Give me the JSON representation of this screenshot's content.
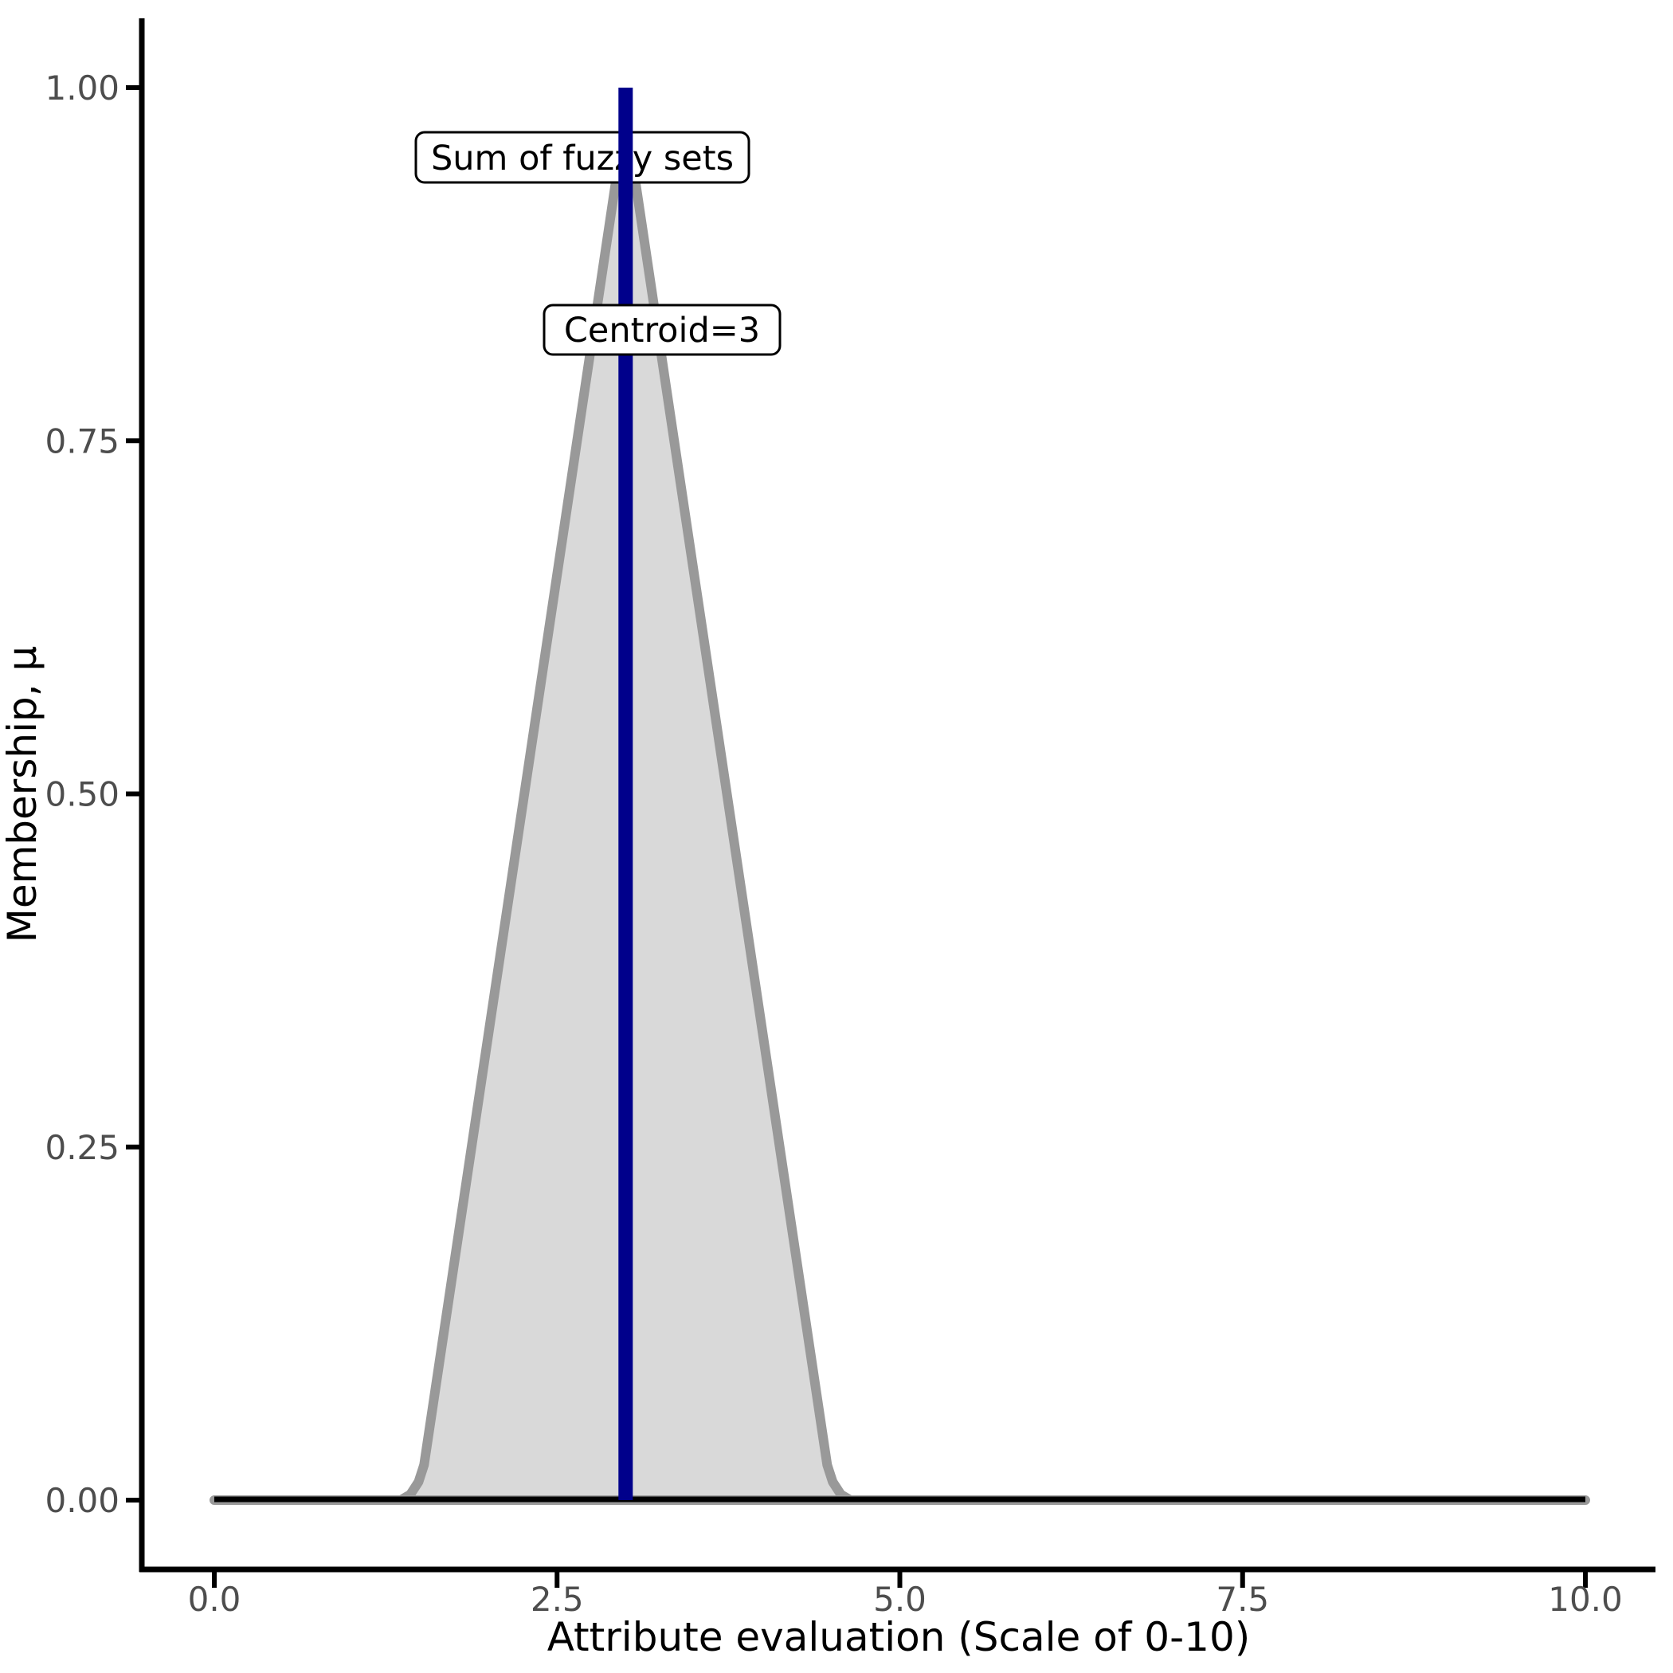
{
  "chart_data": {
    "type": "area",
    "title": "",
    "xlabel": "Attribute evaluation (Scale of 0-10)",
    "ylabel": "Membership, μ",
    "xlim": [
      0,
      10
    ],
    "ylim": [
      0,
      1
    ],
    "grid": "off",
    "legend": "none",
    "x_ticks": [
      "0.0",
      "2.5",
      "5.0",
      "7.5",
      "10.0"
    ],
    "x_tick_values": [
      0,
      2.5,
      5,
      7.5,
      10
    ],
    "y_ticks": [
      "0.00",
      "0.25",
      "0.50",
      "0.75",
      "1.00"
    ],
    "y_tick_values": [
      0,
      0.25,
      0.5,
      0.75,
      1
    ],
    "series": [
      {
        "name": "Sum of fuzzy sets",
        "kind": "filled-polygon",
        "fill": "#D9D9D9",
        "stroke": "#999999",
        "stroke_width": 12,
        "points": [
          [
            0,
            0
          ],
          [
            1.36,
            0
          ],
          [
            1.43,
            0.004
          ],
          [
            1.49,
            0.013
          ],
          [
            1.53,
            0.025
          ],
          [
            3,
            0.98
          ],
          [
            4.47,
            0.025
          ],
          [
            4.51,
            0.013
          ],
          [
            4.57,
            0.004
          ],
          [
            4.64,
            0
          ],
          [
            10,
            0
          ]
        ]
      },
      {
        "name": "zero-baseline",
        "kind": "line",
        "stroke": "#000000",
        "stroke_width": 7,
        "points": [
          [
            0,
            0
          ],
          [
            10,
            0
          ]
        ]
      },
      {
        "name": "Centroid",
        "kind": "vline",
        "stroke": "#00008B",
        "stroke_width": 18,
        "x": 3,
        "y_from": 0,
        "y_to": 1
      }
    ],
    "annotations": [
      {
        "text": "Sum of fuzzy sets",
        "x": 2.69,
        "y": 0.945
      },
      {
        "text": "Centroid=3",
        "x": 3.27,
        "y": 0.822
      }
    ],
    "centroid": 3
  },
  "labels": {
    "sum_box": "Sum of fuzzy sets",
    "centroid_box": "Centroid=3"
  },
  "axes": {
    "x_title": "Attribute evaluation (Scale of 0-10)",
    "y_title": "Membership, μ"
  },
  "colors": {
    "centroid_line": "#00008B",
    "area_fill": "#D9D9D9",
    "area_stroke": "#999999",
    "axis": "#000000",
    "tick_text": "#4D4D4D"
  }
}
